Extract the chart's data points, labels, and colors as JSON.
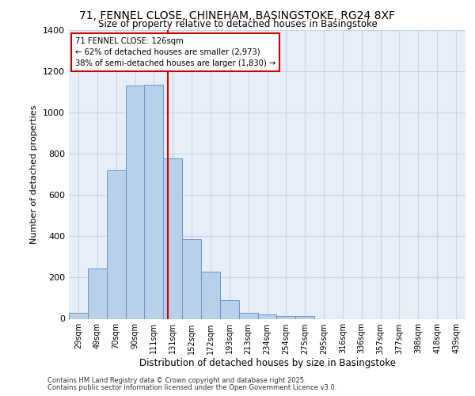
{
  "title_line1": "71, FENNEL CLOSE, CHINEHAM, BASINGSTOKE, RG24 8XF",
  "title_line2": "Size of property relative to detached houses in Basingstoke",
  "xlabel": "Distribution of detached houses by size in Basingstoke",
  "ylabel": "Number of detached properties",
  "bin_labels": [
    "29sqm",
    "49sqm",
    "70sqm",
    "90sqm",
    "111sqm",
    "131sqm",
    "152sqm",
    "172sqm",
    "193sqm",
    "213sqm",
    "234sqm",
    "254sqm",
    "275sqm",
    "295sqm",
    "316sqm",
    "336sqm",
    "357sqm",
    "377sqm",
    "398sqm",
    "418sqm",
    "439sqm"
  ],
  "bar_values": [
    30,
    245,
    720,
    1130,
    1135,
    775,
    385,
    230,
    90,
    30,
    20,
    15,
    12,
    0,
    0,
    0,
    0,
    0,
    0,
    0,
    0
  ],
  "bar_color": "#b8d0e8",
  "bar_edge_color": "#6699cc",
  "grid_color": "#c8d4e8",
  "background_color": "#e8eef8",
  "property_vline_x": 4.75,
  "annotation_title": "71 FENNEL CLOSE: 126sqm",
  "annotation_line2": "← 62% of detached houses are smaller (2,973)",
  "annotation_line3": "38% of semi-detached houses are larger (1,830) →",
  "annotation_box_facecolor": "#ffffff",
  "annotation_box_edgecolor": "#cc0000",
  "property_vline_color": "#cc0000",
  "footer_line1": "Contains HM Land Registry data © Crown copyright and database right 2025.",
  "footer_line2": "Contains public sector information licensed under the Open Government Licence v3.0.",
  "ylim": [
    0,
    1400
  ],
  "yticks": [
    0,
    200,
    400,
    600,
    800,
    1000,
    1200,
    1400
  ],
  "fig_width": 6.0,
  "fig_height": 5.0,
  "fig_dpi": 100
}
